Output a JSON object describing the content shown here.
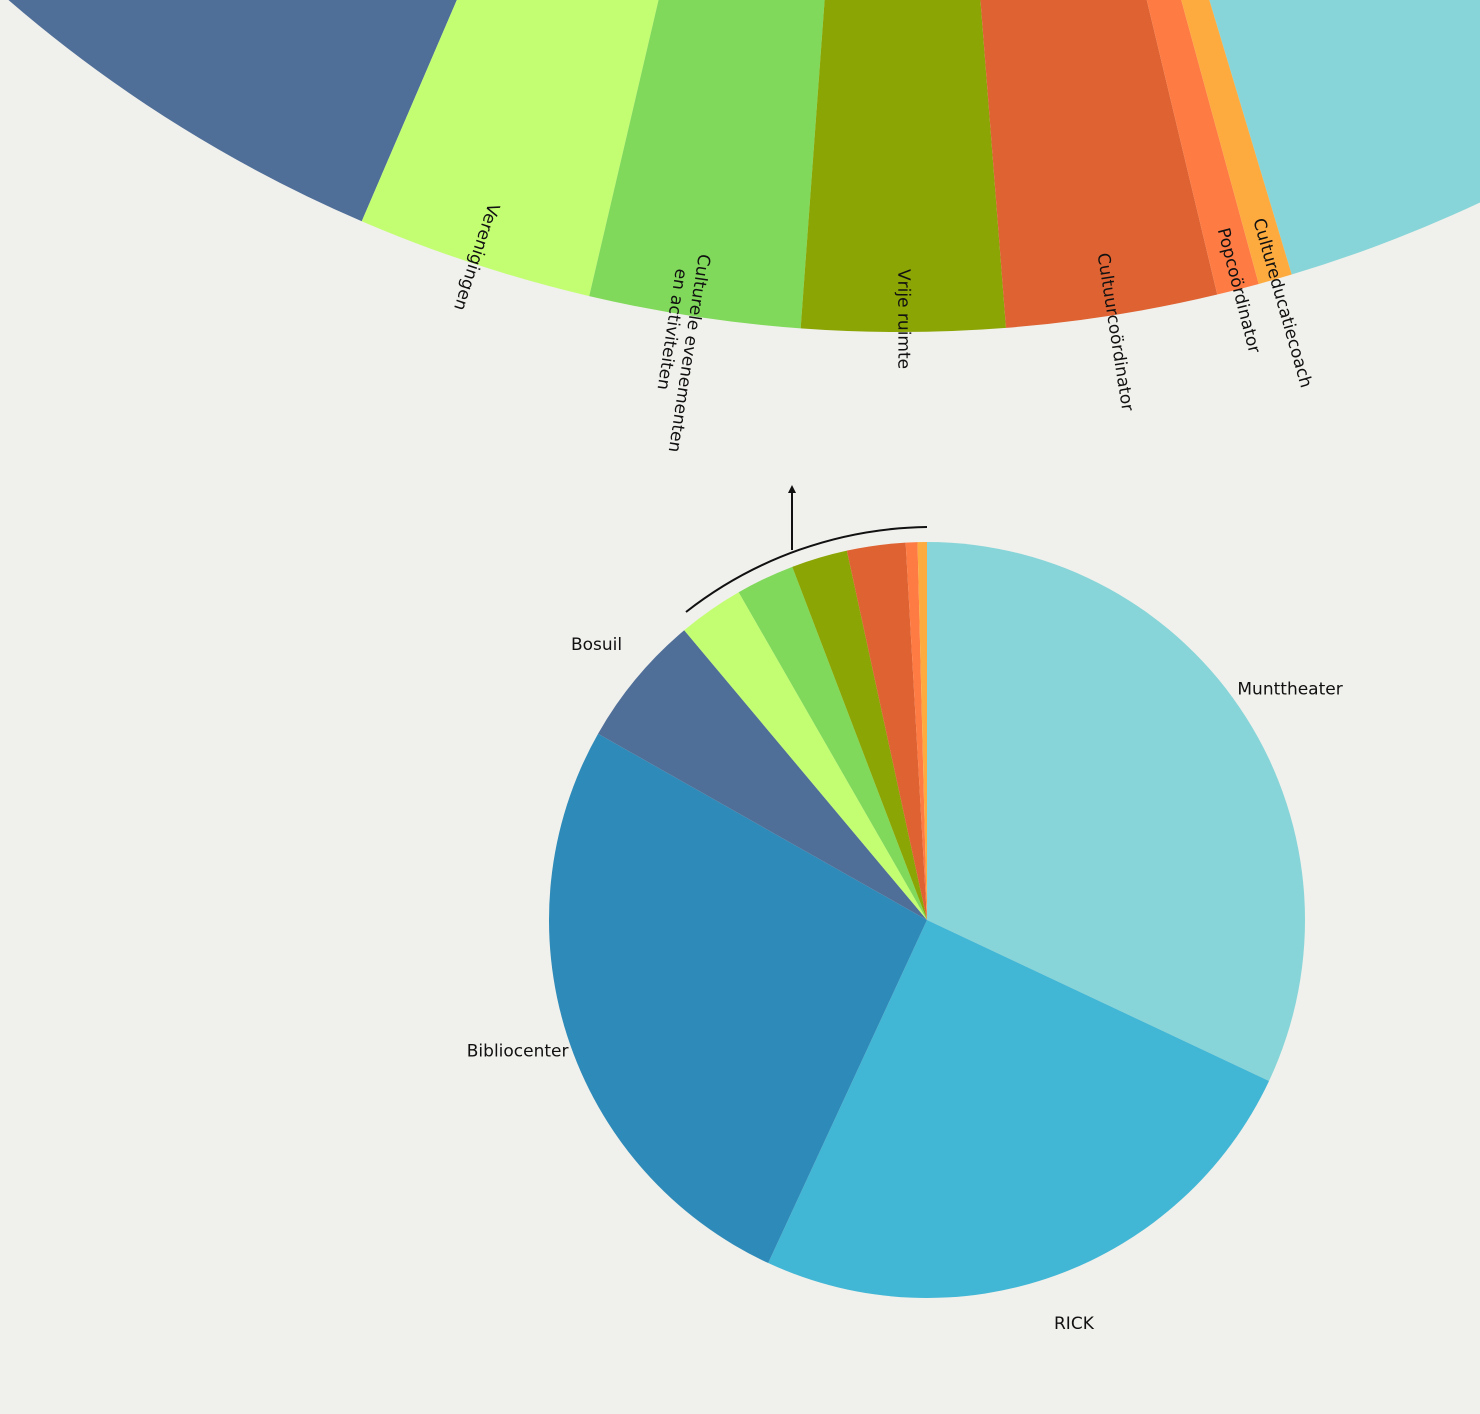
{
  "chart_data": {
    "type": "pie",
    "categories": [
      "Munttheater",
      "RICK",
      "Bibliocenter",
      "Bosuil",
      "Verenigingen",
      "Culturele evenementen en activiteiten",
      "Vrije ruimte",
      "Cultuurcoördinator",
      "Popcoördinator",
      "Cultureducatiecoach"
    ],
    "values": [
      32,
      24.9,
      26.3,
      5.7,
      2.8,
      2.5,
      2.4,
      2.5,
      0.5,
      0.4
    ],
    "colors": [
      "#87d5d8",
      "#42b6d5",
      "#2e8bb9",
      "#4f6e98",
      "#c3fe72",
      "#80d95a",
      "#8aa504",
      "#de6232",
      "#fe7c44",
      "#fdab3f"
    ]
  }
}
